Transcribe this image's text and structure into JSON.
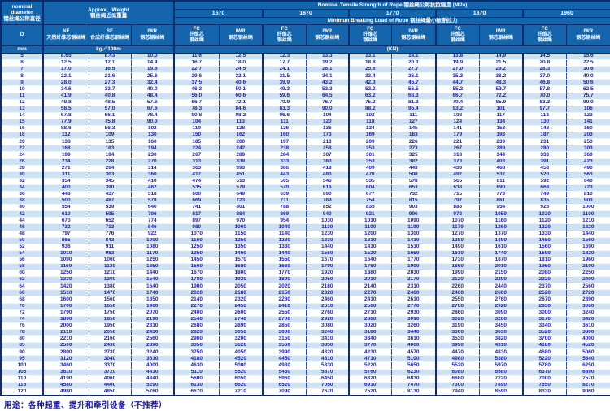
{
  "header": {
    "nominal_en": "nominal diameter",
    "nominal_cn": "钢丝绳公称直径",
    "weight_en": "Approx．Weight",
    "weight_cn": "钢丝绳近似重量",
    "tensile_title": "Nominal  Tensile  Strength  of  Rope  钢丝绳公称抗拉强度  (MPa)",
    "strengths": [
      "1570",
      "1670",
      "1770",
      "1870",
      "1960"
    ],
    "breaking_title": "Minimun  Breaking  Load  of  Rope  钢丝绳最小破断拉力",
    "d_label": "D",
    "nf_code": "NF",
    "nf_cn": "天然纤维芯钢丝绳",
    "sf_code": "SF",
    "sf_cn": "合成纤维芯钢丝绳",
    "iwr_weight_code": "IWR",
    "iwr_weight_cn": "钢芯钢丝绳",
    "fc_code": "FC",
    "fc_cn1": "纤维芯",
    "fc_cn2": "钢丝绳",
    "iwr_code": "IWR",
    "iwr_cn": "钢芯钢丝绳",
    "unit_mm": "mm",
    "unit_kg": "kg／100m",
    "unit_kn": "(KN)"
  },
  "columns": [
    "D mm",
    "NF kg/100m",
    "SF kg/100m",
    "IWR kg/100m",
    "FC 1570",
    "IWR 1570",
    "FC 1670",
    "IWR 1670",
    "FC 1770",
    "IWR 1770",
    "FC 1870",
    "IWR 1870",
    "FC 1960",
    "IWR 1960"
  ],
  "rows": [
    [
      "5",
      "8.65",
      "8.43",
      "10.0",
      "11.6",
      "12.5",
      "12.3",
      "13.3",
      "13.1",
      "14.1",
      "13.8",
      "14.9",
      "14.5",
      "15.6"
    ],
    [
      "6",
      "12.5",
      "12.1",
      "14.4",
      "16.7",
      "18.0",
      "17.7",
      "19.2",
      "18.8",
      "20.3",
      "19.9",
      "21.5",
      "20.8",
      "22.5"
    ],
    [
      "7",
      "17.0",
      "16.5",
      "19.6",
      "22.7",
      "24.5",
      "24.1",
      "26.1",
      "25.6",
      "27.7",
      "27.0",
      "29.2",
      "28.3",
      "30.6"
    ],
    [
      "8",
      "22.1",
      "21.6",
      "25.6",
      "29.6",
      "32.1",
      "31.5",
      "34.1",
      "33.4",
      "36.1",
      "35.3",
      "38.2",
      "37.0",
      "40.0"
    ],
    [
      "9",
      "28.0",
      "27.3",
      "32.4",
      "37.5",
      "40.6",
      "39.9",
      "43.2",
      "42.3",
      "45.7",
      "44.7",
      "48.3",
      "46.8",
      "50.6"
    ],
    [
      "10",
      "34.6",
      "33.7",
      "40.0",
      "46.3",
      "50.1",
      "49.3",
      "53.3",
      "52.2",
      "56.5",
      "55.2",
      "59.7",
      "57.8",
      "62.5"
    ],
    [
      "11",
      "41.9",
      "40.8",
      "48.4",
      "56.0",
      "60.6",
      "59.6",
      "64.5",
      "63.2",
      "68.3",
      "66.7",
      "72.2",
      "70.0",
      "75.7"
    ],
    [
      "12",
      "49.8",
      "48.5",
      "57.6",
      "66.7",
      "72.1",
      "70.9",
      "76.7",
      "75.2",
      "81.3",
      "79.4",
      "85.9",
      "83.3",
      "90.0"
    ],
    [
      "13",
      "58.5",
      "57.0",
      "67.6",
      "78.3",
      "84.6",
      "83.3",
      "90.0",
      "88.2",
      "95.4",
      "93.2",
      "101",
      "97.7",
      "106"
    ],
    [
      "14",
      "67.8",
      "66.1",
      "78.4",
      "90.8",
      "98.2",
      "96.6",
      "104",
      "102",
      "111",
      "108",
      "117",
      "113",
      "123"
    ],
    [
      "15",
      "77.9",
      "75.8",
      "90.0",
      "104",
      "113",
      "111",
      "120",
      "118",
      "127",
      "124",
      "134",
      "130",
      "141"
    ],
    [
      "16",
      "88.6",
      "86.3",
      "102",
      "119",
      "128",
      "126",
      "136",
      "134",
      "145",
      "141",
      "153",
      "148",
      "160"
    ],
    [
      "18",
      "112",
      "109",
      "130",
      "150",
      "162",
      "160",
      "173",
      "169",
      "183",
      "179",
      "193",
      "187",
      "203"
    ],
    [
      "20",
      "138",
      "135",
      "160",
      "185",
      "200",
      "197",
      "213",
      "209",
      "226",
      "221",
      "239",
      "231",
      "250"
    ],
    [
      "22",
      "168",
      "163",
      "194",
      "224",
      "242",
      "238",
      "258",
      "253",
      "273",
      "267",
      "289",
      "280",
      "303"
    ],
    [
      "24",
      "199",
      "194",
      "230",
      "267",
      "289",
      "284",
      "307",
      "301",
      "325",
      "318",
      "344",
      "333",
      "360"
    ],
    [
      "26",
      "234",
      "228",
      "270",
      "313",
      "339",
      "333",
      "360",
      "353",
      "382",
      "373",
      "403",
      "391",
      "423"
    ],
    [
      "28",
      "271",
      "264",
      "314",
      "363",
      "393",
      "386",
      "418",
      "409",
      "443",
      "433",
      "468",
      "453",
      "490"
    ],
    [
      "30",
      "311",
      "303",
      "360",
      "417",
      "451",
      "443",
      "480",
      "470",
      "508",
      "497",
      "537",
      "520",
      "563"
    ],
    [
      "32",
      "354",
      "345",
      "410",
      "474",
      "513",
      "505",
      "546",
      "535",
      "578",
      "565",
      "611",
      "592",
      "640"
    ],
    [
      "34",
      "400",
      "390",
      "462",
      "535",
      "579",
      "570",
      "616",
      "604",
      "653",
      "638",
      "690",
      "668",
      "723"
    ],
    [
      "36",
      "448",
      "437",
      "518",
      "600",
      "649",
      "639",
      "690",
      "677",
      "732",
      "715",
      "773",
      "749",
      "810"
    ],
    [
      "38",
      "500",
      "487",
      "578",
      "669",
      "723",
      "711",
      "769",
      "754",
      "815",
      "797",
      "861",
      "835",
      "903"
    ],
    [
      "40",
      "554",
      "539",
      "640",
      "741",
      "801",
      "788",
      "852",
      "835",
      "903",
      "883",
      "954",
      "925",
      "1000"
    ],
    [
      "42",
      "610",
      "595",
      "706",
      "817",
      "884",
      "869",
      "940",
      "921",
      "996",
      "973",
      "1050",
      "1020",
      "1100"
    ],
    [
      "44",
      "670",
      "652",
      "774",
      "897",
      "970",
      "954",
      "1030",
      "1010",
      "1090",
      "1070",
      "1160",
      "1120",
      "1210"
    ],
    [
      "46",
      "732",
      "713",
      "846",
      "980",
      "1060",
      "1040",
      "1130",
      "1100",
      "1190",
      "1170",
      "1260",
      "1220",
      "1320"
    ],
    [
      "48",
      "797",
      "776",
      "922",
      "1070",
      "1150",
      "1140",
      "1230",
      "1200",
      "1300",
      "1270",
      "1370",
      "1330",
      "1440"
    ],
    [
      "50",
      "865",
      "843",
      "1000",
      "1160",
      "1250",
      "1230",
      "1330",
      "1310",
      "1410",
      "1380",
      "1490",
      "1450",
      "1560"
    ],
    [
      "52",
      "936",
      "911",
      "1080",
      "1250",
      "1350",
      "1330",
      "1440",
      "1410",
      "1530",
      "1490",
      "1610",
      "1560",
      "1690"
    ],
    [
      "54",
      "1010",
      "983",
      "1170",
      "1350",
      "1460",
      "1440",
      "1550",
      "1520",
      "1650",
      "1610",
      "1740",
      "1690",
      "1820"
    ],
    [
      "56",
      "1090",
      "1060",
      "1250",
      "1450",
      "1570",
      "1550",
      "1670",
      "1640",
      "1770",
      "1730",
      "1870",
      "1810",
      "1960"
    ],
    [
      "58",
      "1160",
      "1130",
      "1350",
      "1560",
      "1680",
      "1660",
      "1790",
      "1760",
      "1900",
      "1860",
      "2010",
      "1950",
      "2100"
    ],
    [
      "60",
      "1250",
      "1210",
      "1440",
      "1670",
      "1800",
      "1770",
      "1920",
      "1880",
      "2030",
      "1990",
      "2150",
      "2080",
      "2250"
    ],
    [
      "62",
      "1330",
      "1300",
      "1540",
      "1780",
      "1920",
      "1890",
      "2050",
      "2010",
      "2170",
      "2120",
      "2290",
      "2220",
      "2400"
    ],
    [
      "64",
      "1420",
      "1380",
      "1640",
      "1900",
      "2050",
      "2020",
      "2180",
      "2140",
      "2310",
      "2260",
      "2440",
      "2370",
      "2560"
    ],
    [
      "66",
      "1510",
      "1470",
      "1740",
      "2020",
      "2180",
      "2150",
      "2320",
      "2270",
      "2460",
      "2400",
      "2600",
      "2520",
      "2720"
    ],
    [
      "68",
      "1600",
      "1560",
      "1850",
      "2140",
      "2320",
      "2280",
      "2460",
      "2410",
      "2610",
      "2550",
      "2760",
      "2670",
      "2890"
    ],
    [
      "70",
      "1700",
      "1650",
      "1960",
      "2270",
      "2450",
      "2410",
      "2610",
      "2560",
      "2770",
      "2700",
      "2920",
      "2830",
      "3060"
    ],
    [
      "72",
      "1790",
      "1750",
      "2070",
      "2400",
      "2600",
      "2550",
      "2760",
      "2710",
      "2930",
      "2860",
      "3090",
      "3000",
      "3240"
    ],
    [
      "74",
      "1890",
      "1850",
      "2190",
      "2540",
      "2740",
      "2700",
      "2920",
      "2860",
      "3090",
      "3020",
      "3260",
      "3170",
      "3420"
    ],
    [
      "76",
      "2000",
      "1950",
      "2310",
      "2680",
      "2890",
      "2850",
      "3080",
      "3020",
      "3260",
      "3190",
      "3450",
      "3340",
      "3610"
    ],
    [
      "78",
      "2110",
      "2050",
      "2430",
      "2820",
      "3050",
      "3000",
      "3240",
      "3180",
      "3440",
      "3360",
      "3630",
      "3520",
      "3800"
    ],
    [
      "80",
      "2210",
      "2160",
      "2560",
      "2960",
      "3200",
      "3150",
      "3410",
      "3340",
      "3610",
      "3530",
      "3820",
      "3700",
      "4000"
    ],
    [
      "85",
      "2500",
      "2430",
      "2890",
      "3350",
      "3620",
      "3560",
      "3850",
      "3770",
      "4060",
      "3990",
      "4310",
      "4180",
      "4520"
    ],
    [
      "90",
      "2800",
      "2730",
      "3240",
      "3750",
      "4050",
      "3990",
      "4320",
      "4230",
      "4570",
      "4470",
      "4830",
      "4680",
      "5060"
    ],
    [
      "95",
      "3120",
      "3040",
      "3610",
      "4180",
      "4520",
      "4450",
      "4810",
      "4710",
      "5100",
      "4980",
      "5380",
      "5220",
      "5640"
    ],
    [
      "100",
      "3460",
      "3370",
      "4000",
      "4630",
      "5000",
      "4930",
      "5330",
      "5220",
      "5650",
      "5520",
      "5970",
      "5780",
      "6250"
    ],
    [
      "105",
      "3810",
      "3720",
      "4410",
      "5110",
      "5520",
      "5430",
      "5870",
      "5760",
      "6230",
      "6080",
      "6580",
      "6370",
      "6890"
    ],
    [
      "110",
      "4190",
      "4060",
      "4840",
      "5600",
      "6050",
      "5960",
      "6450",
      "6320",
      "6830",
      "6680",
      "7220",
      "7000",
      "7570"
    ],
    [
      "115",
      "4580",
      "4460",
      "5290",
      "6130",
      "6620",
      "6520",
      "7050",
      "6910",
      "7470",
      "7300",
      "7890",
      "7650",
      "8270"
    ],
    [
      "120",
      "4980",
      "4850",
      "5760",
      "6670",
      "7210",
      "7090",
      "7670",
      "7520",
      "8130",
      "7940",
      "8590",
      "8330",
      "9060"
    ]
  ],
  "footer": "用途：各种起重、提升和牵引设备（不推荐）",
  "colors": {
    "header_bg": "#1465ab",
    "border_dark": "#0d2b6d",
    "row_alt": "#cfe2f4",
    "data_text": "#2023a0",
    "footer_text": "#161695"
  }
}
